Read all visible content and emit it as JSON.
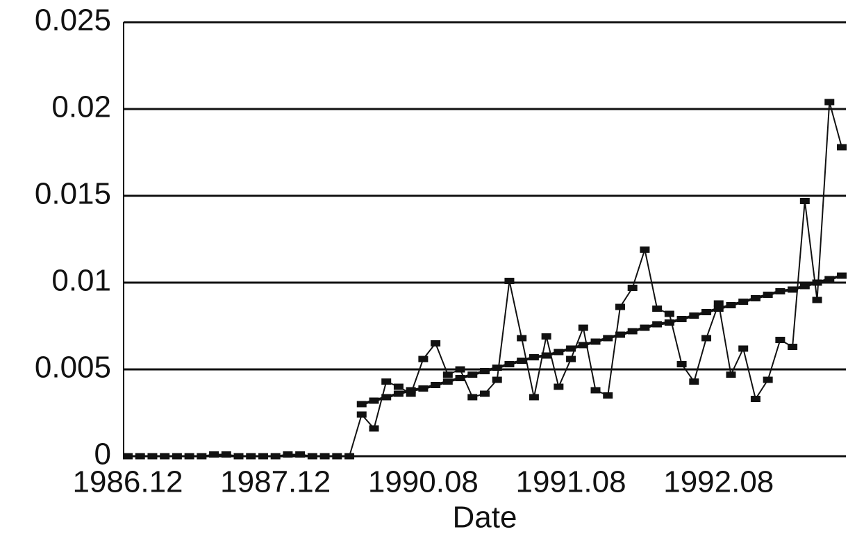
{
  "chart_data": {
    "type": "line",
    "x_label": "Date",
    "categories": [
      "1986.12",
      null,
      null,
      null,
      null,
      null,
      null,
      null,
      null,
      null,
      null,
      null,
      "1987.12",
      null,
      null,
      null,
      null,
      null,
      null,
      null,
      null,
      null,
      null,
      null,
      "1990.08",
      null,
      null,
      null,
      null,
      null,
      null,
      null,
      null,
      null,
      null,
      null,
      "1991.08",
      null,
      null,
      null,
      null,
      null,
      null,
      null,
      null,
      null,
      null,
      null,
      "1992.08",
      null,
      null,
      null,
      null,
      null,
      null,
      null,
      null,
      null,
      null
    ],
    "series": [
      {
        "color": "#111111",
        "values": [
          0,
          0,
          0,
          0,
          0,
          0,
          0,
          0.0001,
          0.0001,
          0,
          0,
          0,
          0,
          0.0001,
          0.0001,
          0,
          0,
          0,
          0,
          0.0024,
          0.0016,
          0.0043,
          0.004,
          0.0036,
          0.0056,
          0.0065,
          0.0047,
          0.005,
          0.0034,
          0.0036,
          0.0044,
          0.0101,
          0.0068,
          0.0034,
          0.0069,
          0.004,
          0.0056,
          0.0074,
          0.0038,
          0.0035,
          0.0086,
          0.0097,
          0.0119,
          0.0085,
          0.0082,
          0.0053,
          0.0043,
          0.0068,
          0.0088,
          0.0047,
          0.0062,
          0.0033,
          0.0044,
          0.0067,
          0.0063,
          0.0147,
          0.009,
          0.0204,
          0.0178
        ]
      },
      {
        "color": "#111111",
        "values": [
          null,
          null,
          null,
          null,
          null,
          null,
          null,
          null,
          null,
          null,
          null,
          null,
          null,
          null,
          null,
          null,
          null,
          null,
          null,
          0.003,
          0.0032,
          0.0034,
          0.0036,
          0.0038,
          0.0039,
          0.0041,
          0.0043,
          0.0045,
          0.0047,
          0.0049,
          0.0051,
          0.0053,
          0.0055,
          0.0057,
          0.0058,
          0.006,
          0.0062,
          0.0064,
          0.0066,
          0.0068,
          0.007,
          0.0072,
          0.0074,
          0.0076,
          0.0077,
          0.0079,
          0.0081,
          0.0083,
          0.0085,
          0.0087,
          0.0089,
          0.0091,
          0.0093,
          0.0095,
          0.0096,
          0.0098,
          0.01,
          0.0102,
          0.0104
        ]
      }
    ],
    "ylim": [
      0,
      0.025
    ],
    "yticks": [
      0,
      0.005,
      0.01,
      0.015,
      0.02,
      0.025
    ],
    "grid": true
  }
}
